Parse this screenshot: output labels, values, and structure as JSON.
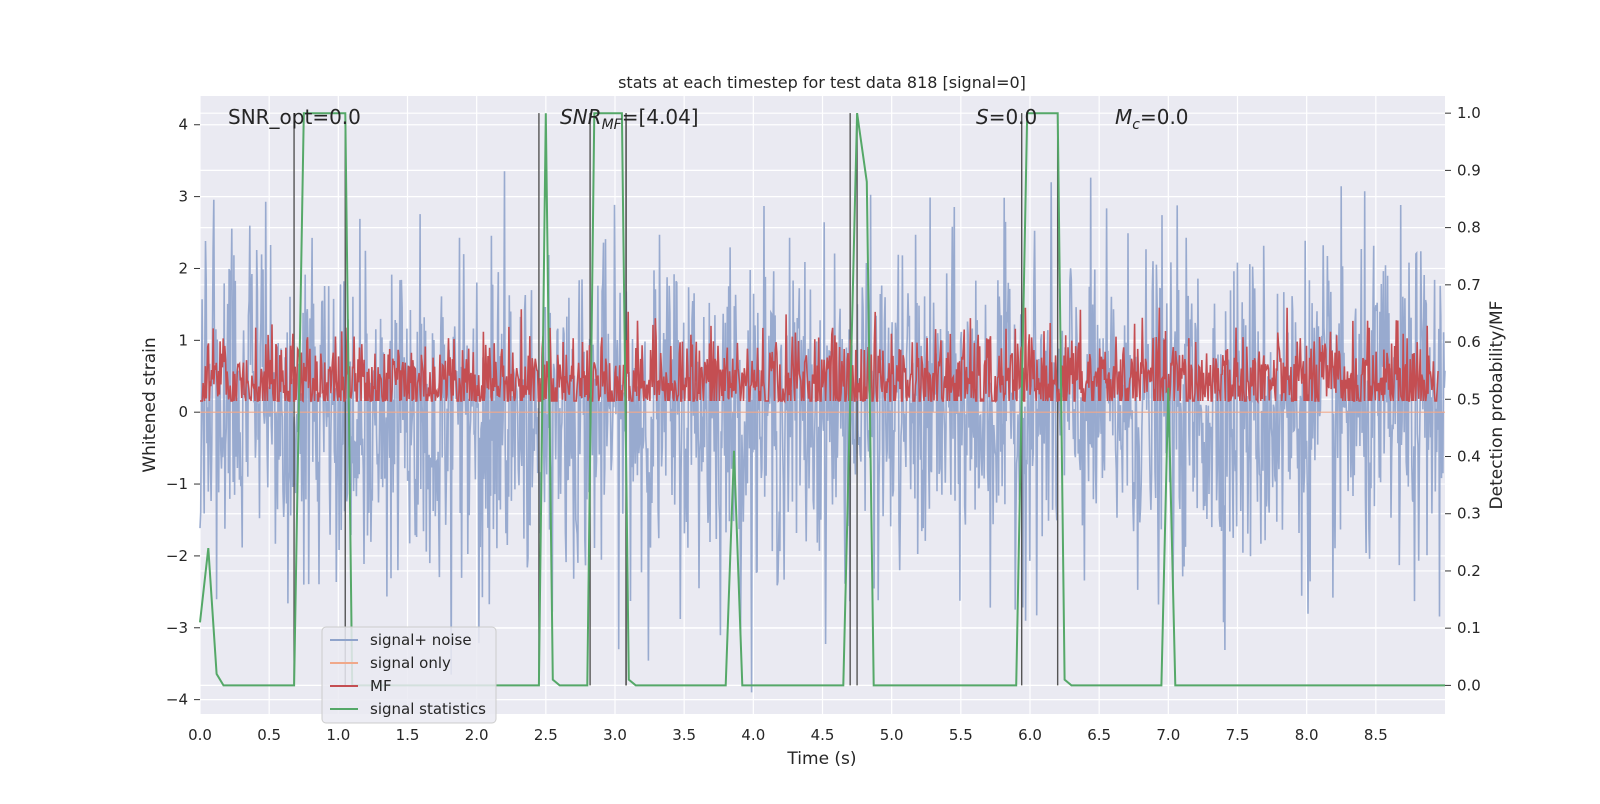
{
  "chart_data": {
    "type": "line",
    "title": "stats at each timestep for test data 818 [signal=0]",
    "xlabel": "Time (s)",
    "ylabel_left": "Whitened strain",
    "ylabel_right": "Detection probability/MF",
    "xlim": [
      0.0,
      9.0
    ],
    "ylim_left": [
      -4.2,
      4.4
    ],
    "ylim_right": [
      -0.05,
      1.03
    ],
    "x_ticks": [
      "0.0",
      "0.5",
      "1.0",
      "1.5",
      "2.0",
      "2.5",
      "3.0",
      "3.5",
      "4.0",
      "4.5",
      "5.0",
      "5.5",
      "6.0",
      "6.5",
      "7.0",
      "7.5",
      "8.0",
      "8.5"
    ],
    "x_tick_values": [
      0,
      0.5,
      1,
      1.5,
      2,
      2.5,
      3,
      3.5,
      4,
      4.5,
      5,
      5.5,
      6,
      6.5,
      7,
      7.5,
      8,
      8.5
    ],
    "y_ticks_left": [
      "−4",
      "−3",
      "−2",
      "−1",
      "0",
      "1",
      "2",
      "3",
      "4"
    ],
    "y_tick_values_left": [
      -4,
      -3,
      -2,
      -1,
      0,
      1,
      2,
      3,
      4
    ],
    "y_ticks_right": [
      "0.0",
      "0.1",
      "0.2",
      "0.3",
      "0.4",
      "0.5",
      "0.6",
      "0.7",
      "0.8",
      "0.9",
      "1.0"
    ],
    "y_tick_values_right": [
      0,
      0.1,
      0.2,
      0.3,
      0.4,
      0.5,
      0.6,
      0.7,
      0.8,
      0.9,
      1.0
    ],
    "annotations": {
      "snr_opt": "SNR_opt=0.0",
      "snr_mf_base": "SNR",
      "snr_mf_sub": "MF",
      "snr_mf_rest": "=[4.04]",
      "s_label": "S",
      "s_rest": "=0.0",
      "mc_base": "M",
      "mc_sub": "c",
      "mc_rest": "=0.0"
    },
    "legend_position": "lower-left",
    "grid": true,
    "series": [
      {
        "name": "signal+ noise",
        "color": "#8fa3cb",
        "axis": "left",
        "noise": true,
        "sigma": 1.0,
        "t_start": 0.0,
        "t_end": 9.0
      },
      {
        "name": "signal only",
        "color": "#f0a88a",
        "axis": "left",
        "x": [
          0.0,
          9.0
        ],
        "y": [
          0.0,
          0.0
        ]
      },
      {
        "name": "MF",
        "color": "#c44e52",
        "axis": "right",
        "noise": true,
        "mean": 0.53,
        "spread": 0.045,
        "floor": 0.497,
        "cap": 0.66
      },
      {
        "name": "signal statistics",
        "color": "#55a868",
        "axis": "right",
        "x": [
          0.0,
          0.06,
          0.12,
          0.17,
          0.22,
          0.5,
          0.68,
          0.75,
          1.0,
          1.05,
          1.1,
          2.45,
          2.5,
          2.55,
          2.6,
          2.8,
          2.85,
          3.05,
          3.1,
          3.15,
          3.8,
          3.86,
          3.92,
          4.65,
          4.75,
          4.82,
          4.87,
          5.9,
          5.98,
          6.2,
          6.25,
          6.3,
          6.95,
          7.0,
          7.05,
          9.0
        ],
        "y": [
          0.11,
          0.24,
          0.02,
          0.0,
          0.0,
          0.0,
          0.0,
          1.0,
          1.0,
          1.0,
          0.0,
          0.0,
          1.0,
          0.01,
          0.0,
          0.0,
          1.0,
          1.0,
          0.01,
          0.0,
          0.0,
          0.41,
          0.0,
          0.0,
          1.0,
          0.88,
          0.0,
          0.0,
          1.0,
          1.0,
          0.01,
          0.0,
          0.0,
          0.52,
          0.0,
          0.0
        ]
      }
    ],
    "vertical_lines": {
      "color": "#555555",
      "pairs": [
        [
          0.68,
          1.05
        ],
        [
          2.45,
          3.08
        ],
        [
          2.82,
          3.08
        ],
        [
          4.7,
          4.75
        ],
        [
          5.94,
          6.2
        ]
      ]
    }
  }
}
